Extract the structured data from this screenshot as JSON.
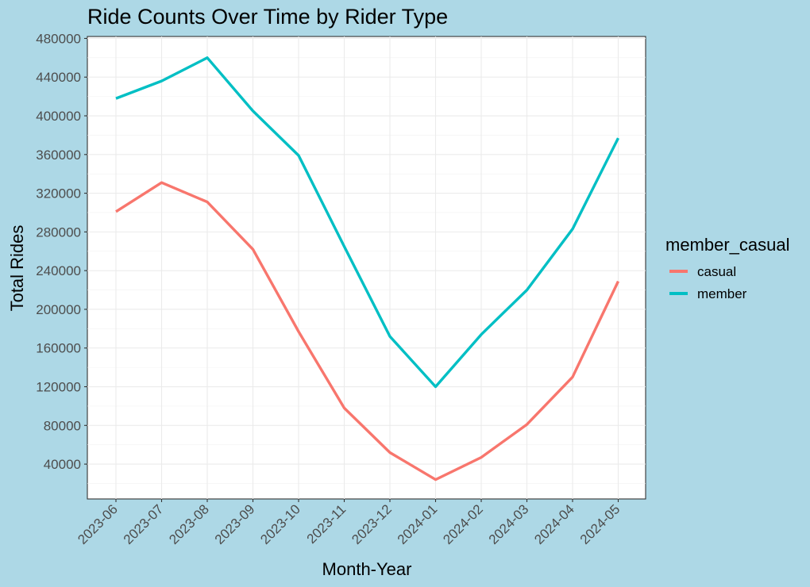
{
  "chart_data": {
    "type": "line",
    "title": "Ride Counts Over Time by Rider Type",
    "xlabel": "Month-Year",
    "ylabel": "Total Rides",
    "categories": [
      "2023-06",
      "2023-07",
      "2023-08",
      "2023-09",
      "2023-10",
      "2023-11",
      "2023-12",
      "2024-01",
      "2024-02",
      "2024-03",
      "2024-04",
      "2024-05"
    ],
    "y_ticks": [
      40000,
      80000,
      120000,
      160000,
      200000,
      240000,
      280000,
      320000,
      360000,
      400000,
      440000,
      480000
    ],
    "y_tick_labels": [
      "40000",
      "80000",
      "120000",
      "160000",
      "200000",
      "240000",
      "280000",
      "320000",
      "360000",
      "400000",
      "440000",
      "480000"
    ],
    "ylim": [
      4000,
      482000
    ],
    "grid": true,
    "legend": {
      "title": "member_casual",
      "position": "right"
    },
    "series": [
      {
        "name": "casual",
        "color": "#f8766d",
        "values": [
          301000,
          331000,
          311000,
          262000,
          177000,
          98000,
          52000,
          24000,
          47000,
          81000,
          130000,
          229000
        ]
      },
      {
        "name": "member",
        "color": "#00bfc4",
        "values": [
          418000,
          436000,
          460000,
          405000,
          359000,
          265000,
          172000,
          120000,
          174000,
          220000,
          283000,
          377000
        ]
      }
    ]
  }
}
